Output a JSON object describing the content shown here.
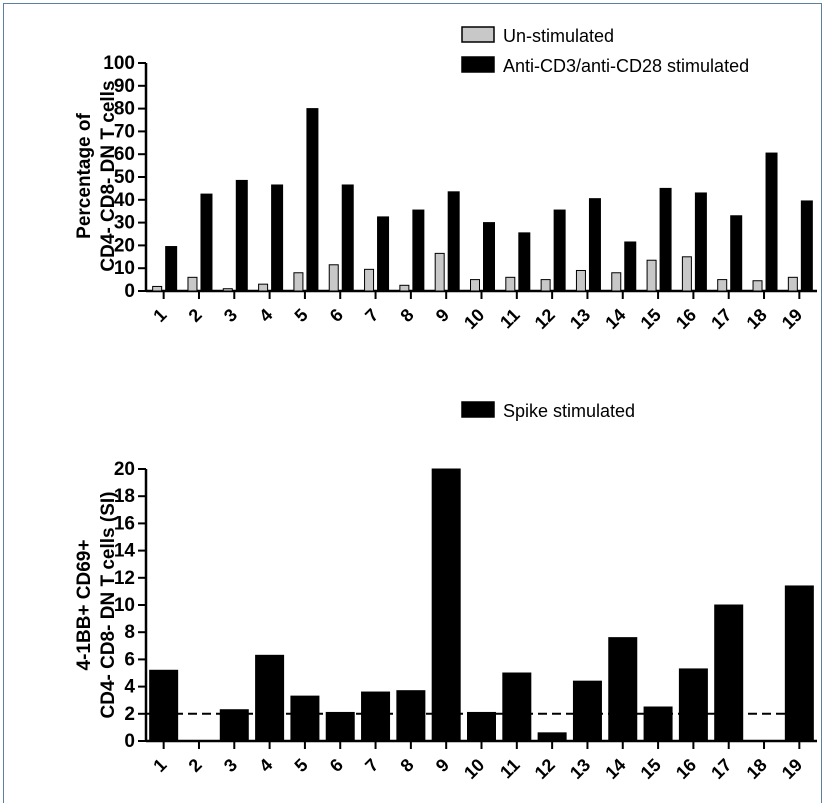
{
  "chart_data": [
    {
      "type": "bar",
      "categories": [
        "1",
        "2",
        "3",
        "4",
        "5",
        "6",
        "7",
        "8",
        "9",
        "10",
        "11",
        "12",
        "13",
        "14",
        "15",
        "16",
        "17",
        "18",
        "19"
      ],
      "series": [
        {
          "name": "Un-stimulated",
          "color": "#c8c8c8",
          "values": [
            2,
            6,
            1,
            3,
            8,
            11.5,
            9.5,
            2.5,
            16.5,
            5,
            6,
            5,
            9,
            8,
            13.5,
            15,
            5,
            4.5,
            6
          ]
        },
        {
          "name": "Anti-CD3/anti-CD28 stimulated",
          "color": "#000000",
          "values": [
            19.5,
            42.5,
            48.5,
            46.5,
            80,
            46.5,
            32.5,
            35.5,
            43.5,
            30,
            25.5,
            35.5,
            40.5,
            21.5,
            45,
            43,
            33,
            60.5,
            39.5
          ]
        }
      ],
      "ylabel_lines": [
        "Percentage of",
        "CD4- CD8- DN T cells"
      ],
      "ylim": [
        0,
        100
      ],
      "yticks": [
        "0",
        "10",
        "20",
        "30",
        "40",
        "50",
        "60",
        "70",
        "80",
        "90",
        "100"
      ],
      "legend_position": "top-right",
      "grid": false
    },
    {
      "type": "bar",
      "categories": [
        "1",
        "2",
        "3",
        "4",
        "5",
        "6",
        "7",
        "8",
        "9",
        "10",
        "11",
        "12",
        "13",
        "14",
        "15",
        "16",
        "17",
        "18",
        "19"
      ],
      "series": [
        {
          "name": "Spike stimulated",
          "color": "#000000",
          "values": [
            5.2,
            0,
            2.3,
            6.3,
            3.3,
            2.1,
            3.6,
            3.7,
            20,
            2.1,
            5,
            0.6,
            4.4,
            7.6,
            2.5,
            5.3,
            10,
            0,
            11.4
          ]
        }
      ],
      "ylabel_lines": [
        "4-1BB+ CD69+",
        "CD4- CD8- DN T cells (SI)"
      ],
      "ylim": [
        0,
        20
      ],
      "yticks": [
        "0",
        "2",
        "4",
        "6",
        "8",
        "10",
        "12",
        "14",
        "16",
        "18",
        "20"
      ],
      "reference_line": 2,
      "legend_position": "top-right",
      "grid": false
    }
  ]
}
